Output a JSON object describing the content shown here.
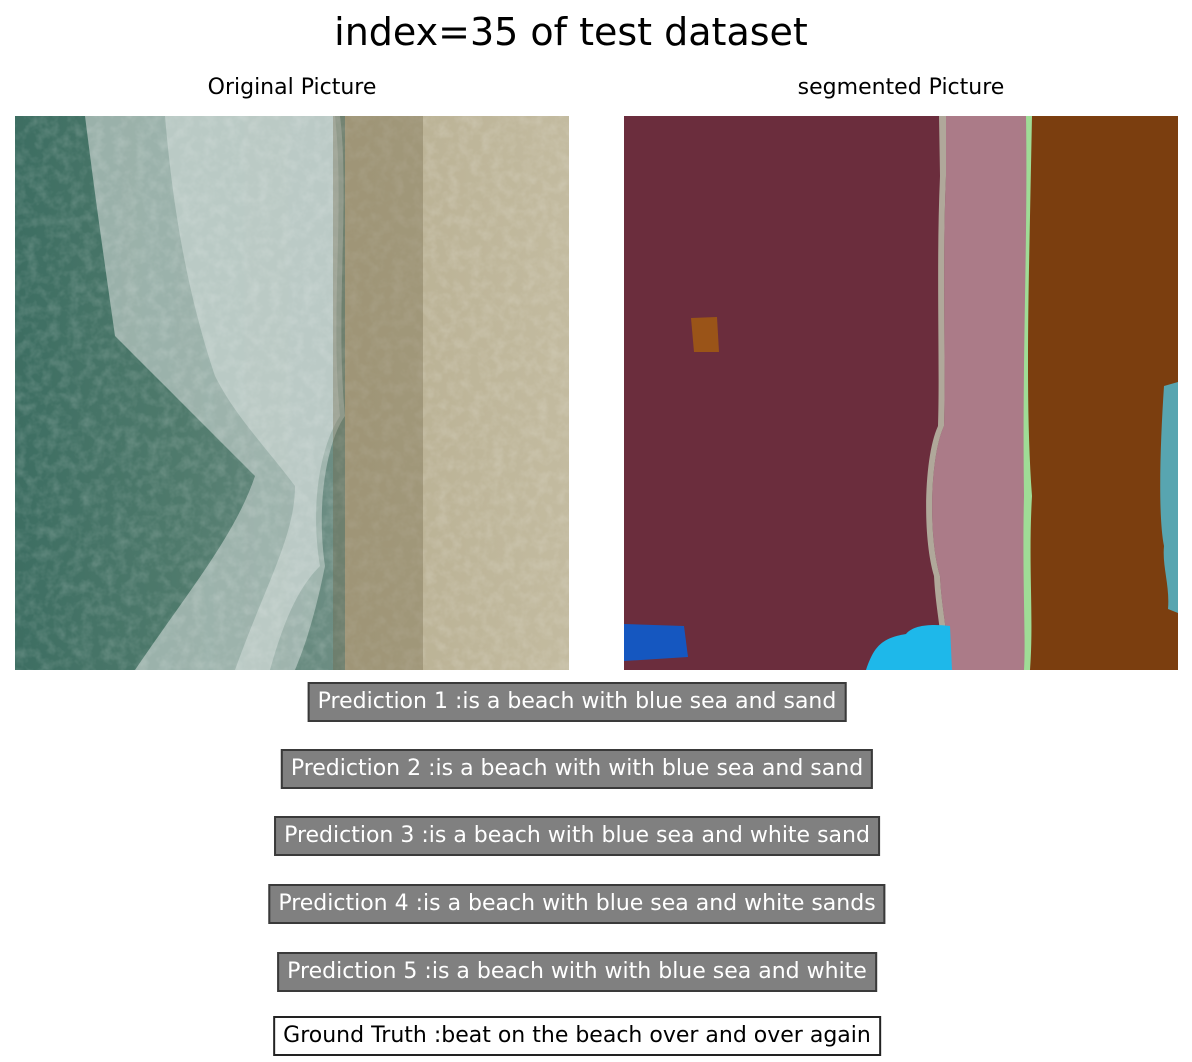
{
  "title": "index=35 of test dataset",
  "panels": {
    "left_title": "Original Picture",
    "right_title": "segmented Picture"
  },
  "predictions": [
    "Prediction 1 :is a beach with blue sea and sand",
    "Prediction 2 :is a beach with with blue sea and sand",
    "Prediction 3 :is a beach with blue sea and white sand",
    "Prediction 4 :is a beach with blue sea and white sands",
    "Prediction 5 :is a beach with with blue sea and white"
  ],
  "ground_truth": "Ground Truth :beat on the beach over and over again",
  "colors": {
    "sea_dark": "#3f6b5c",
    "foam": "#b8c8c2",
    "wet_sand": "#8a7d5c",
    "dry_sand": "#bdb497",
    "seg_maroon": "#6b2d3d",
    "seg_pink": "#ab7b88",
    "seg_brown": "#7b3e0f",
    "seg_orange": "#9a5418",
    "seg_blue": "#1557c0",
    "seg_cyan": "#1eb8ea",
    "seg_teal": "#58a5b0",
    "seg_green": "#9fdc96",
    "label_bg": "#808080"
  }
}
